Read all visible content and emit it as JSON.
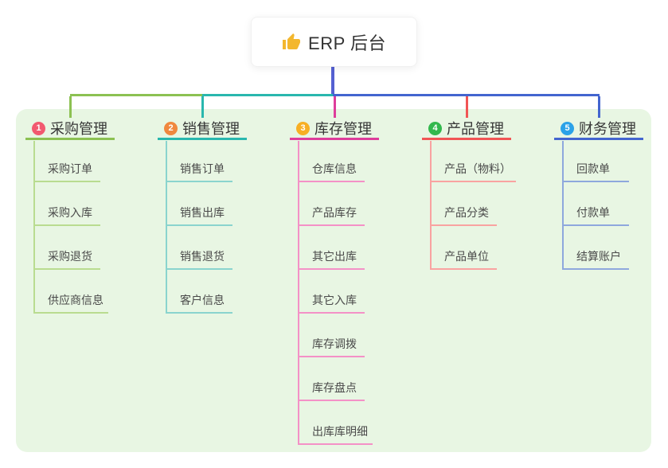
{
  "root": {
    "title": "ERP 后台",
    "icon": "thumbs-up",
    "icon_color": "#f3b72e",
    "connector_color": "#5560d2"
  },
  "panel_color": "#e8f6e3",
  "branches": [
    {
      "num": "1",
      "title": "采购管理",
      "badge_color": "#f25a70",
      "line_color": "#8cc152",
      "child_line_color": "#b9dc90",
      "children": [
        "采购订单",
        "采购入库",
        "采购退货",
        "供应商信息"
      ]
    },
    {
      "num": "2",
      "title": "销售管理",
      "badge_color": "#f0883f",
      "line_color": "#29b7ae",
      "child_line_color": "#8ad4ce",
      "children": [
        "销售订单",
        "销售出库",
        "销售退货",
        "客户信息"
      ]
    },
    {
      "num": "3",
      "title": "库存管理",
      "badge_color": "#f7af24",
      "line_color": "#de3d9b",
      "child_line_color": "#f491c7",
      "children": [
        "仓库信息",
        "产品库存",
        "其它出库",
        "其它入库",
        "库存调拨",
        "库存盘点",
        "出库库明细"
      ]
    },
    {
      "num": "4",
      "title": "产品管理",
      "badge_color": "#33b84d",
      "line_color": "#f15555",
      "child_line_color": "#f9a3a1",
      "children": [
        "产品（物料）",
        "产品分类",
        "产品单位"
      ]
    },
    {
      "num": "5",
      "title": "财务管理",
      "badge_color": "#2ba2e8",
      "line_color": "#4365cf",
      "child_line_color": "#8ea8dd",
      "children": [
        "回款单",
        "付款单",
        "结算账户"
      ]
    }
  ]
}
